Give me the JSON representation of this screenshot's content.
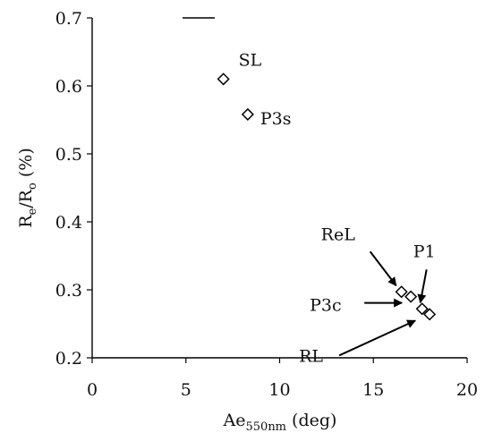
{
  "chart_data": {
    "type": "scatter",
    "title": "",
    "xlabel": {
      "base": "Ae",
      "sub": "550nm",
      "rest": " (deg)"
    },
    "ylabel": {
      "base": "R",
      "sub1": "e",
      "mid": "/R",
      "sub2": "o",
      "rest": " (%)"
    },
    "xlim": [
      0,
      20
    ],
    "ylim": [
      0.2,
      0.7
    ],
    "x_ticks": [
      0,
      5,
      10,
      15,
      20
    ],
    "x_tick_labels": [
      "0",
      "5",
      "10",
      "15",
      "20"
    ],
    "y_ticks": [
      0.2,
      0.3,
      0.4,
      0.5,
      0.6,
      0.7
    ],
    "y_tick_labels": [
      "0.2",
      "0.3",
      "0.4",
      "0.5",
      "0.6",
      "0.7"
    ],
    "grid": false,
    "marker": "open-diamond",
    "points": [
      {
        "label": "SL",
        "x": 7.0,
        "y": 0.61
      },
      {
        "label": "P3s",
        "x": 8.3,
        "y": 0.558
      },
      {
        "label": "ReL",
        "x": 16.5,
        "y": 0.297
      },
      {
        "label": "P3c",
        "x": 17.0,
        "y": 0.29
      },
      {
        "label": "P1",
        "x": 17.6,
        "y": 0.272
      },
      {
        "label": "RL",
        "x": 18.0,
        "y": 0.264
      }
    ]
  }
}
